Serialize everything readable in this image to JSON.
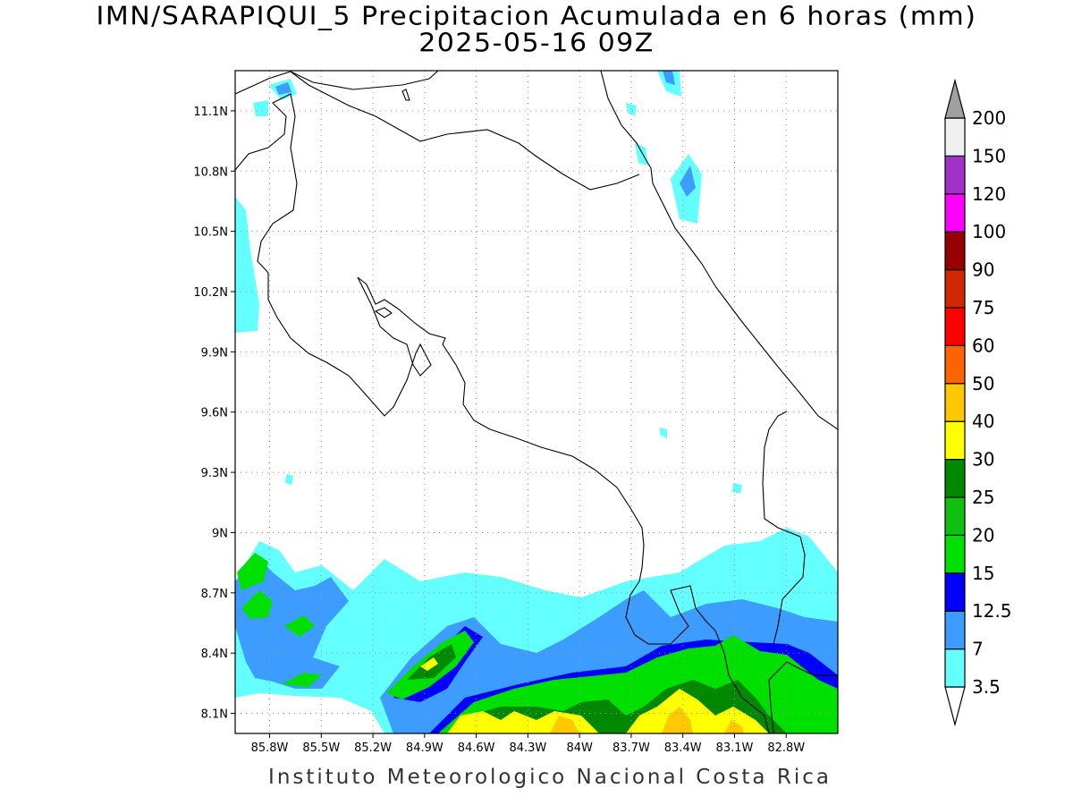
{
  "title": {
    "line1": "IMN/SARAPIQUI_5 Precipitacion Acumulada en 6 horas (mm)",
    "line2": "2025-05-16 09Z"
  },
  "footer": "Instituto Meteorologico Nacional Costa Rica",
  "map": {
    "lon_range": [
      -86.0,
      -82.5
    ],
    "lat_range": [
      8.0,
      11.3
    ],
    "lat_ticks": [
      {
        "value": 11.1,
        "label": "11.1N"
      },
      {
        "value": 10.8,
        "label": "10.8N"
      },
      {
        "value": 10.5,
        "label": "10.5N"
      },
      {
        "value": 10.2,
        "label": "10.2N"
      },
      {
        "value": 9.9,
        "label": "9.9N"
      },
      {
        "value": 9.6,
        "label": "9.6N"
      },
      {
        "value": 9.3,
        "label": "9.3N"
      },
      {
        "value": 9.0,
        "label": "9N"
      },
      {
        "value": 8.7,
        "label": "8.7N"
      },
      {
        "value": 8.4,
        "label": "8.4N"
      },
      {
        "value": 8.1,
        "label": "8.1N"
      }
    ],
    "lon_ticks": [
      {
        "value": -85.8,
        "label": "85.8W"
      },
      {
        "value": -85.5,
        "label": "85.5W"
      },
      {
        "value": -85.2,
        "label": "85.2W"
      },
      {
        "value": -84.9,
        "label": "84.9W"
      },
      {
        "value": -84.6,
        "label": "84.6W"
      },
      {
        "value": -84.3,
        "label": "84.3W"
      },
      {
        "value": -84.0,
        "label": "84W"
      },
      {
        "value": -83.7,
        "label": "83.7W"
      },
      {
        "value": -83.4,
        "label": "83.4W"
      },
      {
        "value": -83.1,
        "label": "83.1W"
      },
      {
        "value": -82.8,
        "label": "82.8W"
      }
    ],
    "grid": "dotted"
  },
  "colorbar": {
    "labels": [
      "3.5",
      "7",
      "12.5",
      "15",
      "20",
      "25",
      "30",
      "40",
      "50",
      "60",
      "75",
      "90",
      "100",
      "120",
      "150",
      "200"
    ],
    "colors": [
      "#64ffff",
      "#3c9cff",
      "#0000ff",
      "#00e000",
      "#10c010",
      "#008800",
      "#ffff00",
      "#ffc800",
      "#ff6400",
      "#ff0000",
      "#d02800",
      "#960000",
      "#ff00ff",
      "#a032c8",
      "#f0f0f0",
      "#a0a0a0"
    ]
  }
}
